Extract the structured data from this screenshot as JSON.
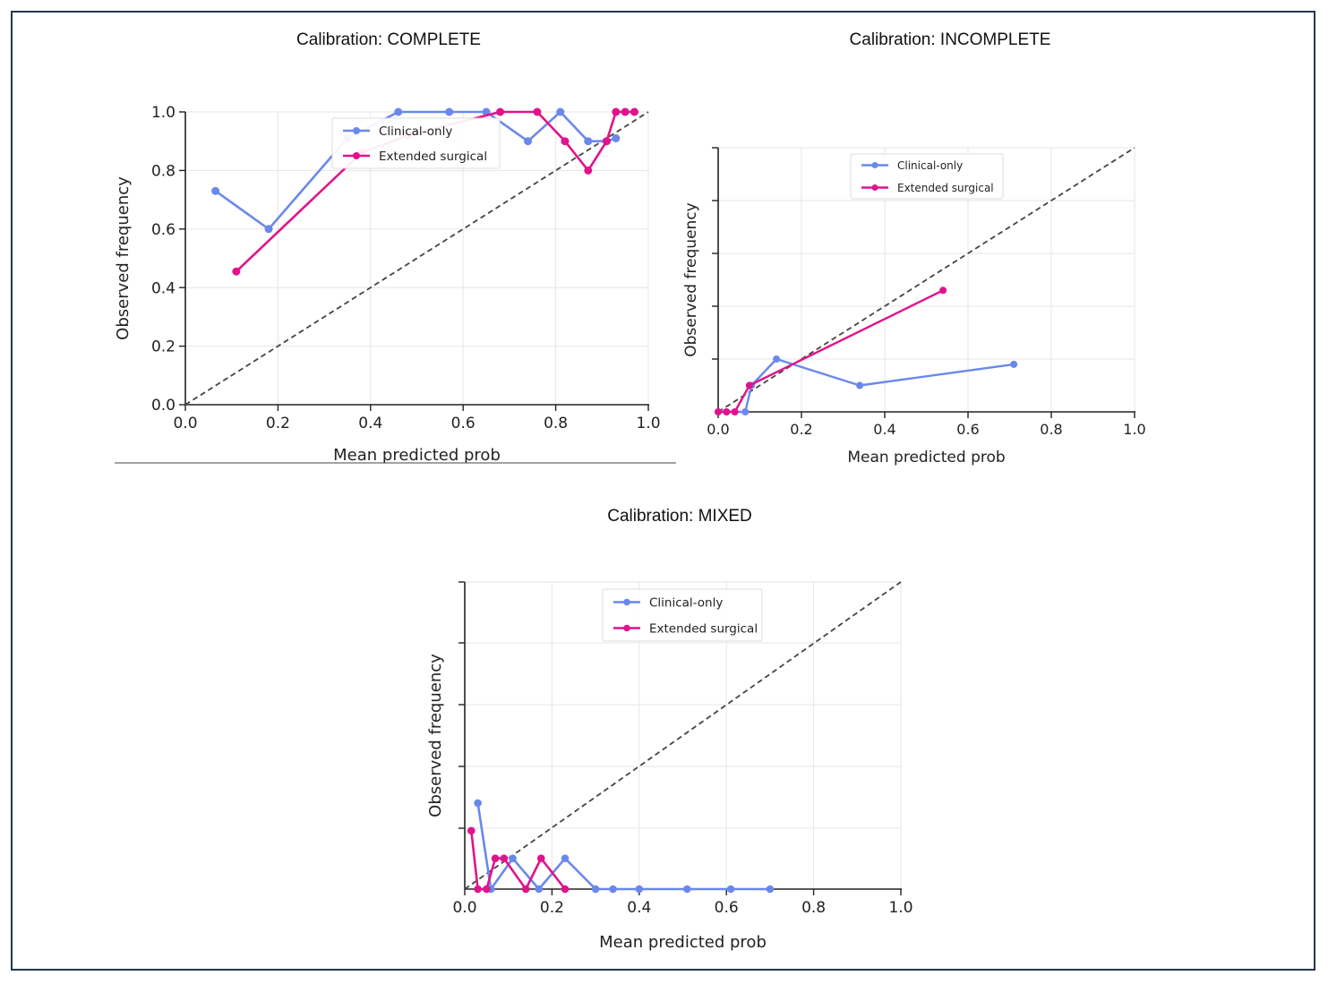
{
  "colors": {
    "clinical": "#6A88EC",
    "extended": "#E0138C",
    "diagonal": "#444444",
    "frame": "#243650",
    "grid": "#e6e6e6"
  },
  "chart_data": [
    {
      "type": "line",
      "title": "Calibration: COMPLETE",
      "xlabel": "Mean predicted prob",
      "ylabel": "Observed frequency",
      "xlim": [
        0,
        1
      ],
      "ylim": [
        0,
        1
      ],
      "xticks": [
        "0.0",
        "0.2",
        "0.4",
        "0.6",
        "0.8",
        "1.0"
      ],
      "yticks": [
        "0.0",
        "0.2",
        "0.4",
        "0.6",
        "0.8",
        "1.0"
      ],
      "grid": true,
      "legend_position": "top-center",
      "reference_line": "diagonal",
      "series": [
        {
          "name": "Clinical-only",
          "x": [
            0.065,
            0.18,
            0.35,
            0.46,
            0.57,
            0.65,
            0.74,
            0.81,
            0.87,
            0.91,
            0.93
          ],
          "y": [
            0.73,
            0.6,
            0.91,
            1.0,
            1.0,
            1.0,
            0.9,
            1.0,
            0.9,
            0.9,
            0.91
          ]
        },
        {
          "name": "Extended surgical",
          "x": [
            0.11,
            0.38,
            0.48,
            0.68,
            0.76,
            0.82,
            0.87,
            0.91,
            0.93,
            0.95,
            0.97
          ],
          "y": [
            0.455,
            0.86,
            0.92,
            1.0,
            1.0,
            0.9,
            0.8,
            0.9,
            1.0,
            1.0,
            1.0
          ]
        }
      ]
    },
    {
      "type": "line",
      "title": "Calibration: INCOMPLETE",
      "xlabel": "Mean predicted prob",
      "ylabel": "Observed frequency",
      "xlim": [
        0,
        1
      ],
      "ylim": [
        0,
        1
      ],
      "xticks": [
        "0.0",
        "0.2",
        "0.4",
        "0.6",
        "0.8",
        "1.0"
      ],
      "yticks": [],
      "grid": true,
      "legend_position": "top-center",
      "reference_line": "diagonal",
      "series": [
        {
          "name": "Clinical-only",
          "x": [
            0.0,
            0.02,
            0.065,
            0.08,
            0.14,
            0.34,
            0.71
          ],
          "y": [
            0.0,
            0.0,
            0.0,
            0.1,
            0.2,
            0.1,
            0.18
          ]
        },
        {
          "name": "Extended surgical",
          "x": [
            0.0,
            0.02,
            0.04,
            0.075,
            0.54
          ],
          "y": [
            0.0,
            0.0,
            0.0,
            0.1,
            0.46
          ]
        }
      ]
    },
    {
      "type": "line",
      "title": "Calibration: MIXED",
      "xlabel": "Mean predicted prob",
      "ylabel": "Observed frequency",
      "xlim": [
        0,
        1
      ],
      "ylim": [
        0,
        1
      ],
      "xticks": [
        "0.0",
        "0.2",
        "0.4",
        "0.6",
        "0.8",
        "1.0"
      ],
      "yticks": [],
      "grid": true,
      "legend_position": "top-center",
      "reference_line": "diagonal",
      "series": [
        {
          "name": "Clinical-only",
          "x": [
            0.03,
            0.06,
            0.11,
            0.17,
            0.23,
            0.3,
            0.34,
            0.4,
            0.51,
            0.61,
            0.7
          ],
          "y": [
            0.28,
            0.0,
            0.1,
            0.0,
            0.1,
            0.0,
            0.0,
            0.0,
            0.0,
            0.0,
            0.0
          ]
        },
        {
          "name": "Extended surgical",
          "x": [
            0.015,
            0.03,
            0.05,
            0.07,
            0.09,
            0.14,
            0.175,
            0.23
          ],
          "y": [
            0.19,
            0.0,
            0.0,
            0.1,
            0.1,
            0.0,
            0.1,
            0.0
          ]
        }
      ]
    }
  ]
}
